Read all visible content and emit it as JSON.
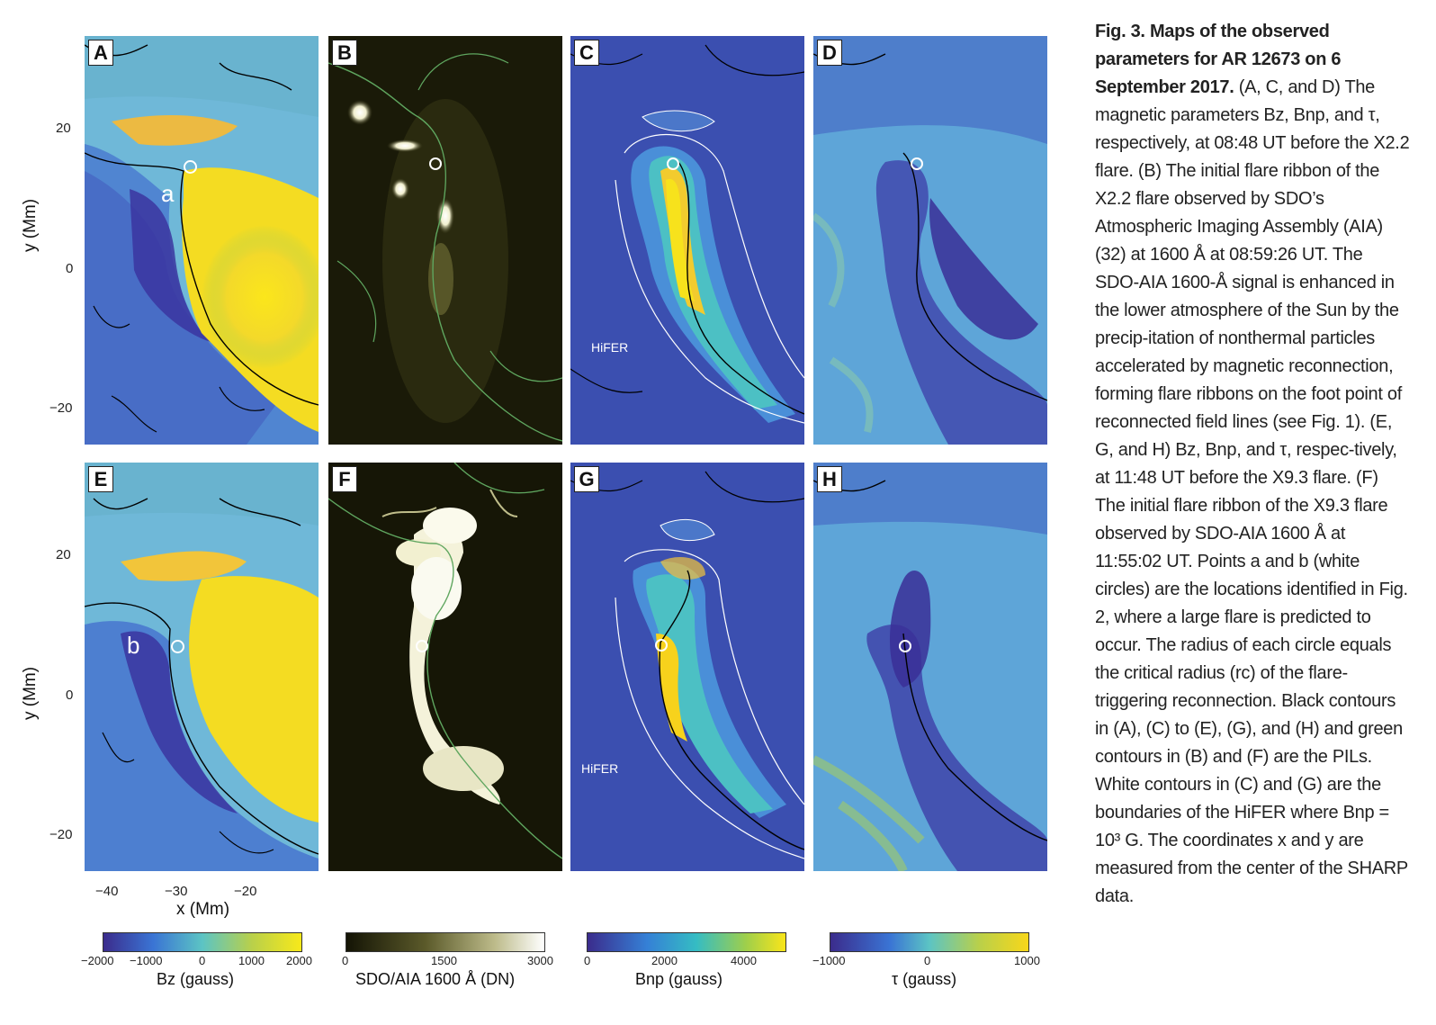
{
  "panels": {
    "A": "A",
    "B": "B",
    "C": "C",
    "D": "D",
    "E": "E",
    "F": "F",
    "G": "G",
    "H": "H"
  },
  "annotations": {
    "a": "a",
    "b": "b",
    "hifer_top": "HiFER",
    "hifer_bottom": "HiFER"
  },
  "axes": {
    "y_ticks_top": [
      "20",
      "0",
      "−20"
    ],
    "y_ticks_bottom": [
      "20",
      "0",
      "−20"
    ],
    "x_ticks": [
      "−40",
      "−30",
      "−20"
    ],
    "y_label": "y (Mm)",
    "x_label": "x (Mm)"
  },
  "colorbars": {
    "bz": {
      "ticks": [
        "−2000",
        "−1000",
        "0",
        "1000",
        "2000"
      ],
      "title": "Bz (gauss)"
    },
    "aia": {
      "ticks": [
        "0",
        "1500",
        "3000"
      ],
      "title": "SDO/AIA 1600 Å (DN)"
    },
    "bnp": {
      "ticks": [
        "0",
        "2000",
        "4000"
      ],
      "title": "Bnp (gauss)"
    },
    "tau": {
      "ticks": [
        "−1000",
        "0",
        "1000"
      ],
      "title": "τ (gauss)"
    }
  },
  "caption": {
    "title": "Fig. 3. Maps of the observed parameters for AR 12673 on 6 September 2017.",
    "body": "(A, C, and D) The magnetic parameters Bz, Bnp, and τ, respectively, at 08:48 UT before the X2.2 flare. (B) The initial flare ribbon of the X2.2 flare observed by SDO’s Atmospheric Imaging Assembly (AIA) (32) at 1600 Å at 08:59:26 UT. The SDO-AIA 1600-Å signal is enhanced in the lower atmosphere of the Sun by the precip-itation of nonthermal particles accelerated by magnetic reconnection, forming flare ribbons on the foot point of reconnected field lines (see Fig. 1). (E, G, and H) Bz, Bnp, and τ, respec-tively, at 11:48 UT before the X9.3 flare. (F) The initial flare ribbon of the X9.3 flare observed by SDO-AIA 1600 Å at 11:55:02 UT. Points a and b (white circles) are the locations identified in Fig. 2, where a large flare is predicted to occur. The radius of each circle equals the critical radius (rc) of the flare-triggering reconnection. Black contours in (A), (C) to (E), (G), and (H) and green contours in (B) and (F) are the PILs. White contours in (C) and (G) are the boundaries of the HiFER where Bnp = 10³ G. The coordinates x and y are measured from the center of the SHARP data."
  }
}
